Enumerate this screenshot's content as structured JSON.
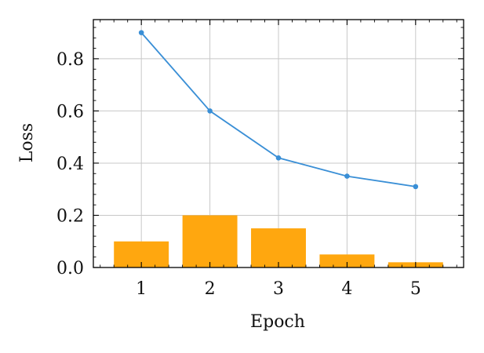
{
  "chart_data": {
    "type": "bar+line",
    "title": "",
    "xlabel": "Epoch",
    "ylabel": "Loss",
    "x": [
      1,
      2,
      3,
      4,
      5
    ],
    "x_ticks": [
      "1",
      "2",
      "3",
      "4",
      "5"
    ],
    "y_ticks": [
      "0.0",
      "0.2",
      "0.4",
      "0.6",
      "0.8"
    ],
    "y_tick_values": [
      0.0,
      0.2,
      0.4,
      0.6,
      0.8
    ],
    "xlim": [
      0.3,
      5.7
    ],
    "ylim": [
      0.0,
      0.95
    ],
    "grid": true,
    "series": [
      {
        "kind": "line",
        "values": [
          0.9,
          0.6,
          0.42,
          0.35,
          0.31
        ],
        "color": "#3a8fd6"
      },
      {
        "kind": "bar",
        "values": [
          0.1,
          0.2,
          0.15,
          0.05,
          0.02
        ],
        "color": "#ffa70f"
      }
    ]
  }
}
